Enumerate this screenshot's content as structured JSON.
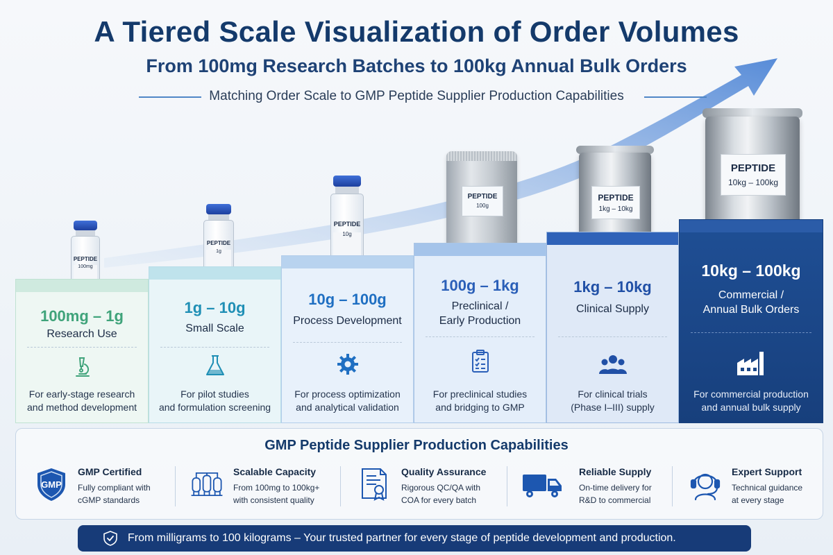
{
  "header": {
    "title": "A Tiered Scale Visualization of Order Volumes",
    "subtitle": "From 100mg Research Batches to 100kg Annual Bulk Orders",
    "tagline": "Matching Order Scale to GMP Peptide Supplier Production Capabilities"
  },
  "products": [
    {
      "type": "vial",
      "label": "PEPTIDE",
      "amount": "100mg"
    },
    {
      "type": "vial",
      "label": "PEPTIDE",
      "amount": "1g"
    },
    {
      "type": "vial",
      "label": "PEPTIDE",
      "amount": "10g"
    },
    {
      "type": "pouch",
      "label": "PEPTIDE",
      "amount": "100g"
    },
    {
      "type": "drum",
      "label": "PEPTIDE",
      "amount": "1kg – 10kg"
    },
    {
      "type": "drum",
      "label": "PEPTIDE",
      "amount": "10kg – 100kg"
    }
  ],
  "tiers": [
    {
      "range": "100mg – 1g",
      "label": "Research Use",
      "icon": "microscope-icon",
      "desc1": "For early-stage research",
      "desc2": "and method development",
      "accent": "#3fa37a"
    },
    {
      "range": "1g – 10g",
      "label": "Small Scale",
      "icon": "flask-icon",
      "desc1": "For pilot studies",
      "desc2": "and formulation screening",
      "accent": "#1f8fb5"
    },
    {
      "range": "10g – 100g",
      "label": "Process Development",
      "icon": "gear-icon",
      "desc1": "For process optimization",
      "desc2": "and analytical validation",
      "accent": "#1f6fc2"
    },
    {
      "range": "100g – 1kg",
      "label_line1": "Preclinical /",
      "label_line2": "Early Production",
      "icon": "checklist-icon",
      "desc1": "For preclinical studies",
      "desc2": "and bridging to GMP",
      "accent": "#2a5fb8"
    },
    {
      "range": "1kg – 10kg",
      "label": "Clinical Supply",
      "icon": "people-icon",
      "desc1": "For clinical trials",
      "desc2": "(Phase I–III) supply",
      "accent": "#2150a6"
    },
    {
      "range": "10kg – 100kg",
      "label_line1": "Commercial /",
      "label_line2": "Annual Bulk Orders",
      "icon": "factory-icon",
      "desc1": "For commercial production",
      "desc2": "and annual bulk supply",
      "accent": "#ffffff"
    }
  ],
  "capabilities": {
    "title": "GMP Peptide Supplier Production Capabilities",
    "items": [
      {
        "name": "GMP Certified",
        "line1": "Fully compliant with",
        "line2": "cGMP standards",
        "icon": "gmp-shield-icon",
        "badge": "GMP"
      },
      {
        "name": "Scalable Capacity",
        "line1": "From 100mg to 100kg+",
        "line2": "with consistent quality",
        "icon": "reactors-icon"
      },
      {
        "name": "Quality Assurance",
        "line1": "Rigorous QC/QA with",
        "line2": "COA for every batch",
        "icon": "certificate-icon"
      },
      {
        "name": "Reliable Supply",
        "line1": "On-time delivery for",
        "line2": "R&D to commercial",
        "icon": "truck-icon"
      },
      {
        "name": "Expert Support",
        "line1": "Technical guidance",
        "line2": "at every stage",
        "icon": "headset-icon"
      }
    ]
  },
  "footer": {
    "text": "From milligrams to 100 kilograms – Your trusted partner for every stage of peptide development and production.",
    "icon": "shield-check-icon"
  },
  "colors": {
    "navy": "#143a6b",
    "dark_step": "#1f4f95",
    "footer_bg": "#173b78",
    "arrow": "#5b8fd6"
  }
}
